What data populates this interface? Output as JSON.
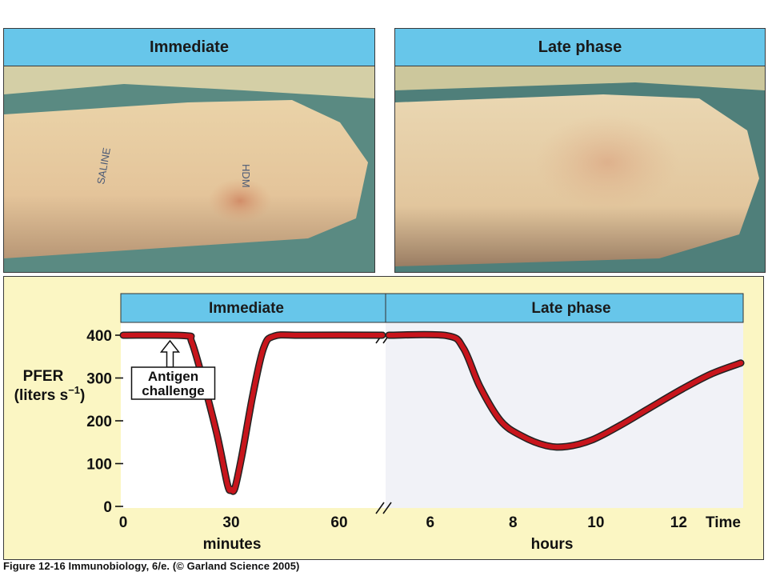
{
  "photos": {
    "left": {
      "header": "Immediate",
      "arm_ink_labels": [
        "SALINE",
        "HDM"
      ]
    },
    "right": {
      "header": "Late phase"
    }
  },
  "chart_data": {
    "type": "line",
    "title": "",
    "ylabel_line1": "PFER",
    "ylabel_line2_prefix": "(liters s",
    "ylabel_superscript": "−1",
    "ylabel_line2_suffix": ")",
    "ylim": [
      0,
      400
    ],
    "yticks": [
      "0",
      "100",
      "200",
      "300",
      "400"
    ],
    "panel_headers": [
      "Immediate",
      "Late phase"
    ],
    "x_segments": [
      {
        "unit_label": "minutes",
        "xlim": [
          0,
          72
        ],
        "ticks": [
          "0",
          "30",
          "60"
        ]
      },
      {
        "unit_label": "hours",
        "xlim": [
          5,
          13.5
        ],
        "ticks": [
          "6",
          "8",
          "10",
          "12"
        ]
      }
    ],
    "time_label": "Time",
    "annotation": {
      "line1": "Antigen",
      "line2": "challenge",
      "x_minutes": 13
    },
    "series": [
      {
        "segment": 0,
        "points": [
          [
            0,
            400
          ],
          [
            17,
            399
          ],
          [
            19,
            385
          ],
          [
            22,
            300
          ],
          [
            26,
            170
          ],
          [
            29,
            50
          ],
          [
            30,
            40
          ],
          [
            31,
            42
          ],
          [
            33,
            120
          ],
          [
            36,
            260
          ],
          [
            39,
            370
          ],
          [
            42,
            398
          ],
          [
            50,
            400
          ],
          [
            72,
            400
          ]
        ]
      },
      {
        "segment": 1,
        "points": [
          [
            5,
            400
          ],
          [
            6.4,
            399
          ],
          [
            6.8,
            370
          ],
          [
            7.2,
            280
          ],
          [
            7.7,
            200
          ],
          [
            8.2,
            165
          ],
          [
            8.8,
            142
          ],
          [
            9.3,
            140
          ],
          [
            9.9,
            155
          ],
          [
            10.6,
            190
          ],
          [
            11.3,
            230
          ],
          [
            12.1,
            275
          ],
          [
            12.8,
            310
          ],
          [
            13.5,
            335
          ]
        ]
      }
    ],
    "colors": {
      "line": "#c8151c",
      "line_outline": "#222222",
      "panel_header": "#67c6ea",
      "background": "#fbf6c3",
      "plot_left": "#ffffff",
      "plot_right": "#f1f2f7"
    }
  },
  "caption": "Figure 12-16 Immunobiology, 6/e. (© Garland Science 2005)"
}
